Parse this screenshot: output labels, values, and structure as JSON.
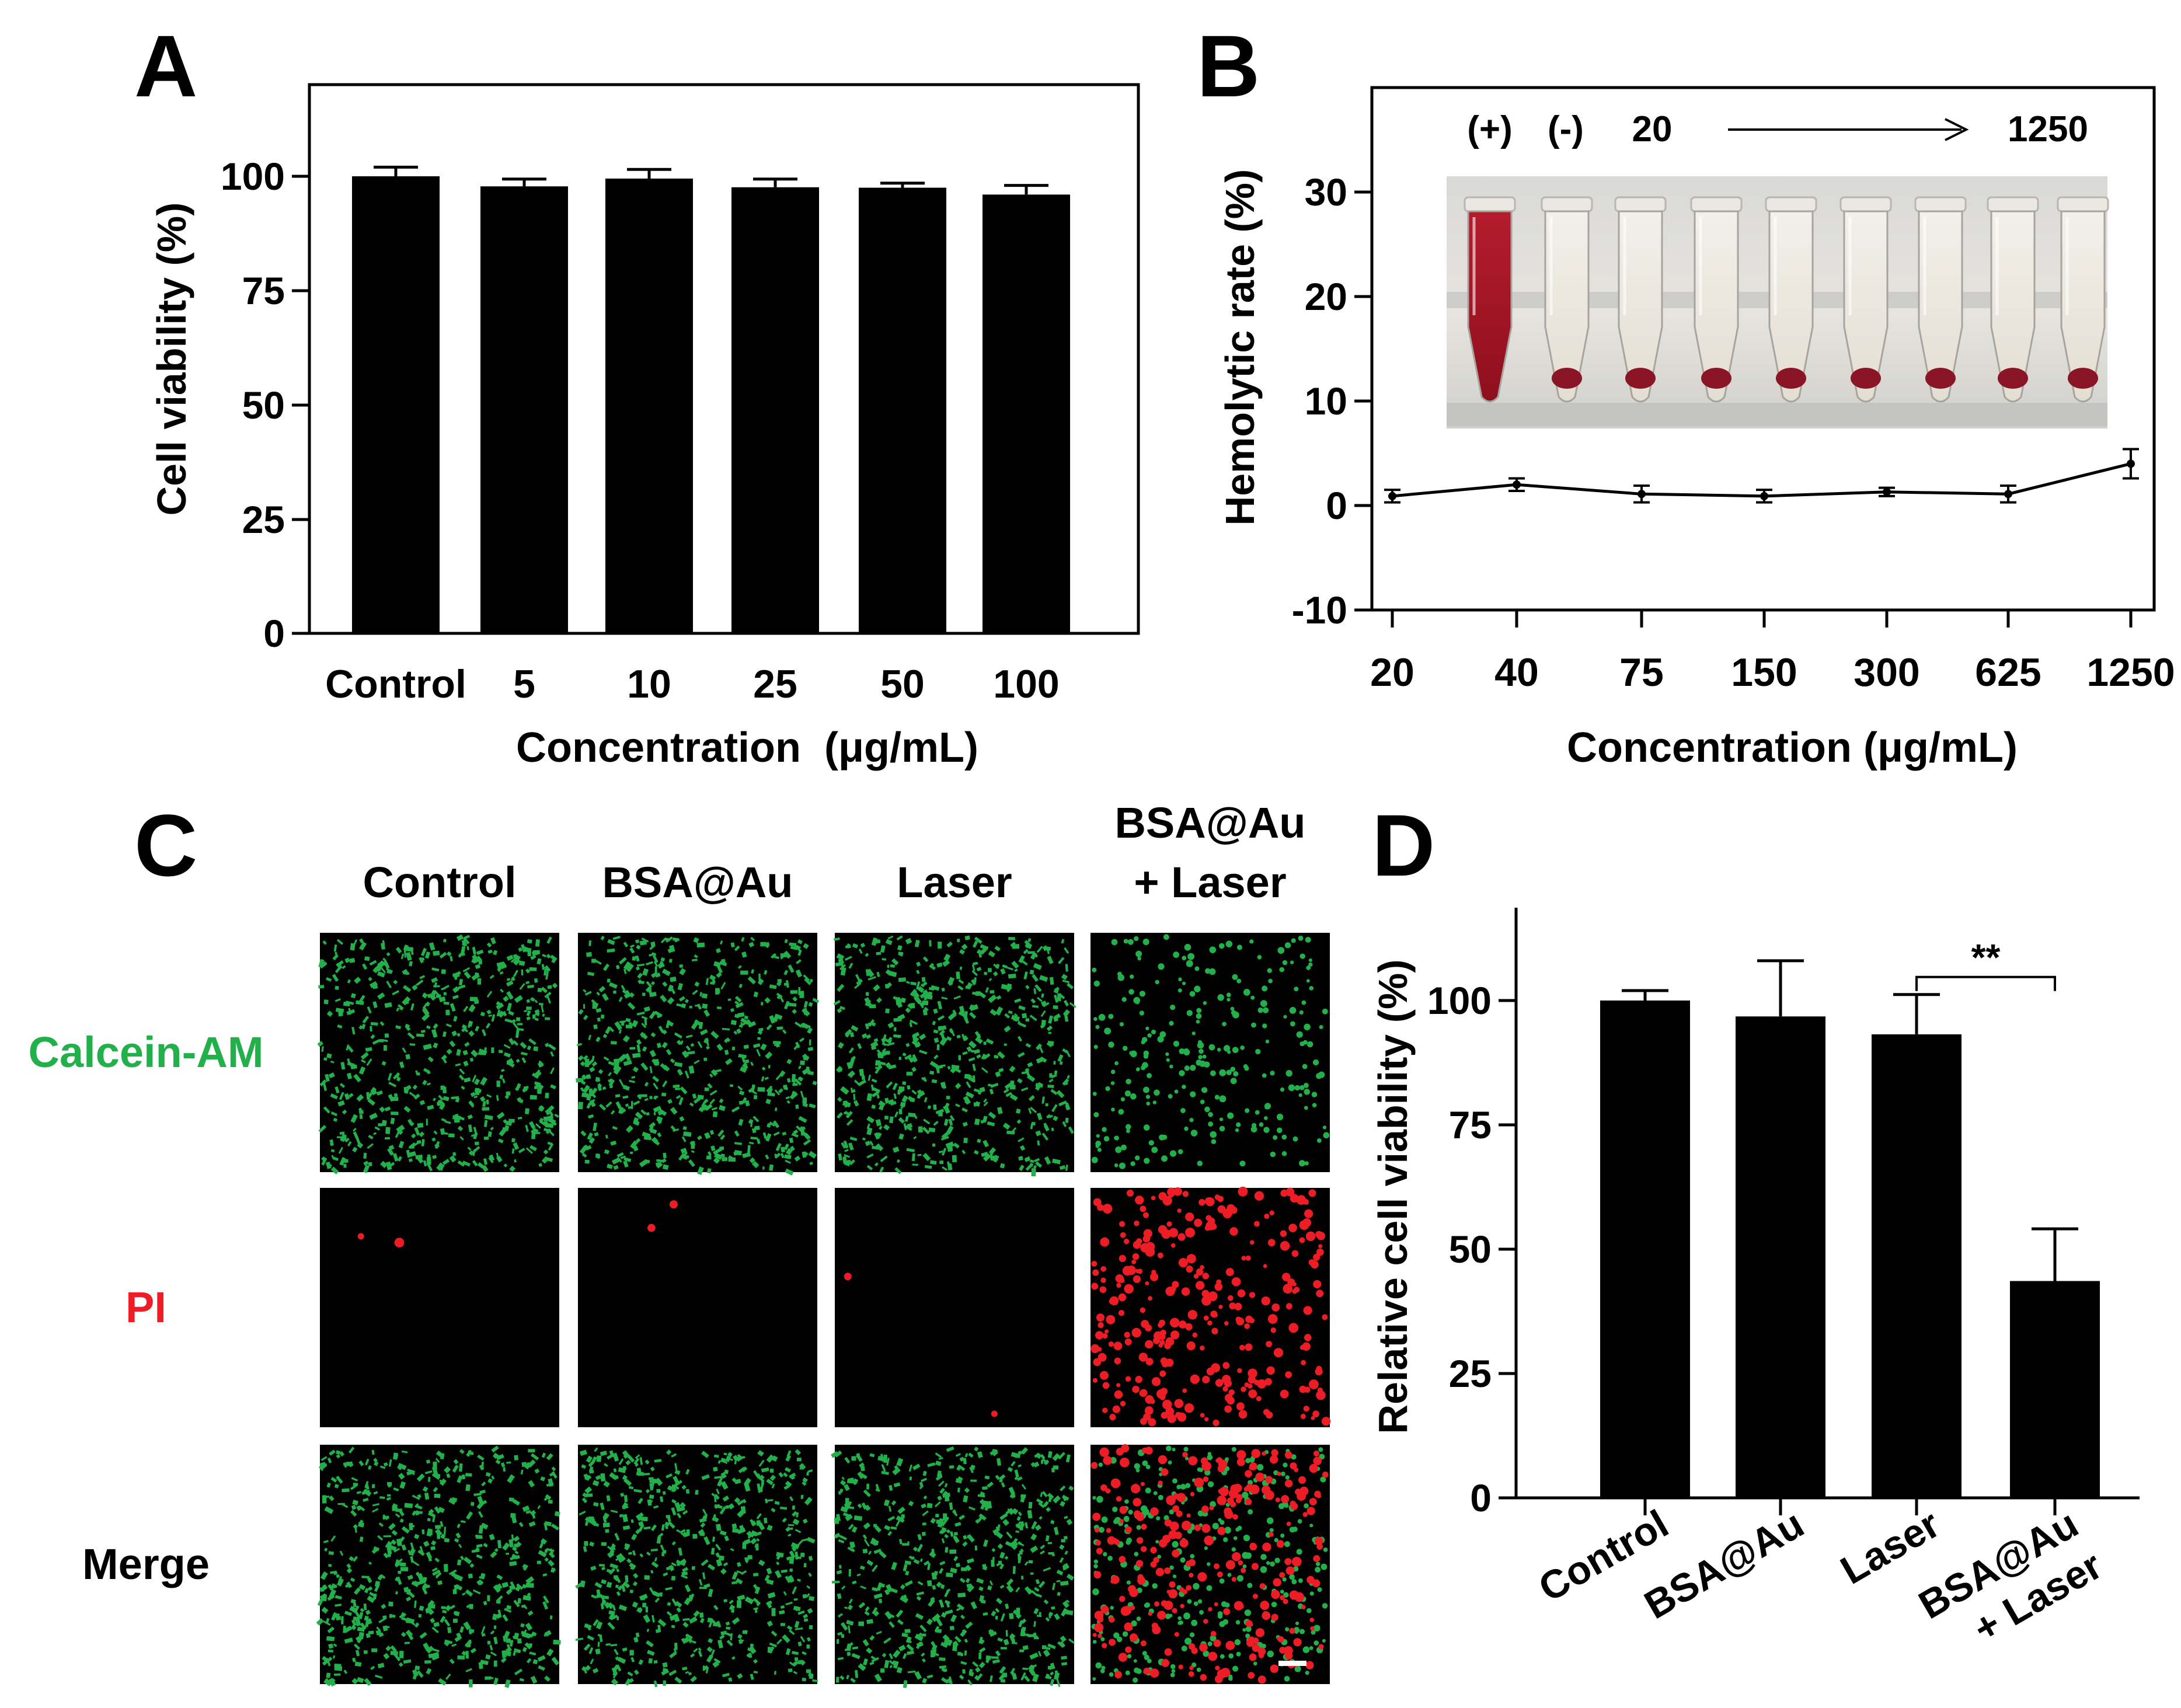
{
  "panel_labels": {
    "a": "A",
    "b": "B",
    "c": "C",
    "d": "D"
  },
  "colors": {
    "bar": "#000000",
    "calcein": "#22b04a",
    "pi": "#ee1c24",
    "micro_bg": "#000000"
  },
  "chart_data": [
    {
      "panel": "A",
      "type": "bar",
      "categories": [
        "Control",
        "5",
        "10",
        "25",
        "50",
        "100"
      ],
      "values": [
        100,
        97.8,
        99.5,
        97.6,
        97.5,
        96.0
      ],
      "errors": [
        2.0,
        1.6,
        2.0,
        1.8,
        1.0,
        2.0
      ],
      "xlabel": "Concentration  (μg/mL)",
      "ylabel": "Cell viability (%)",
      "ylim": [
        0,
        125
      ],
      "yticks": [
        "0",
        "25",
        "50",
        "75",
        "100"
      ],
      "grid": false
    },
    {
      "panel": "B",
      "type": "line",
      "categories": [
        "20",
        "40",
        "75",
        "150",
        "300",
        "625",
        "1250"
      ],
      "values": [
        0.9,
        2.0,
        1.1,
        0.9,
        1.3,
        1.1,
        4.0
      ],
      "errors": [
        0.6,
        0.6,
        0.8,
        0.6,
        0.4,
        0.8,
        1.4
      ],
      "xlabel": "Concentration (μg/mL)",
      "ylabel": "Hemolytic rate (%)",
      "ylim": [
        -10,
        40
      ],
      "yticks": [
        "-10",
        "0",
        "10",
        "20",
        "30"
      ],
      "grid": false,
      "inset_labels": {
        "positive": "(+)",
        "negative": "(-)",
        "low": "20",
        "high": "1250"
      }
    },
    {
      "panel": "D",
      "type": "bar",
      "categories": [
        "Control",
        "BSA@Au",
        "Laser",
        "BSA@Au\n+ Laser"
      ],
      "values": [
        100,
        96.8,
        93.2,
        43.6
      ],
      "errors": [
        2.0,
        11.2,
        8.0,
        10.5
      ],
      "ylabel": "Relative cell viability (%)",
      "ylim": [
        0,
        125
      ],
      "yticks": [
        "0",
        "25",
        "50",
        "75",
        "100"
      ],
      "grid": false,
      "significance": {
        "label": "**",
        "from": "Laser",
        "to": "BSA@Au\n+ Laser"
      }
    }
  ],
  "panel_c": {
    "columns": [
      "Control",
      "BSA@Au",
      "Laser",
      "BSA@Au\n+ Laser"
    ],
    "rows": [
      "Calcein-AM",
      "PI",
      "Merge"
    ]
  }
}
